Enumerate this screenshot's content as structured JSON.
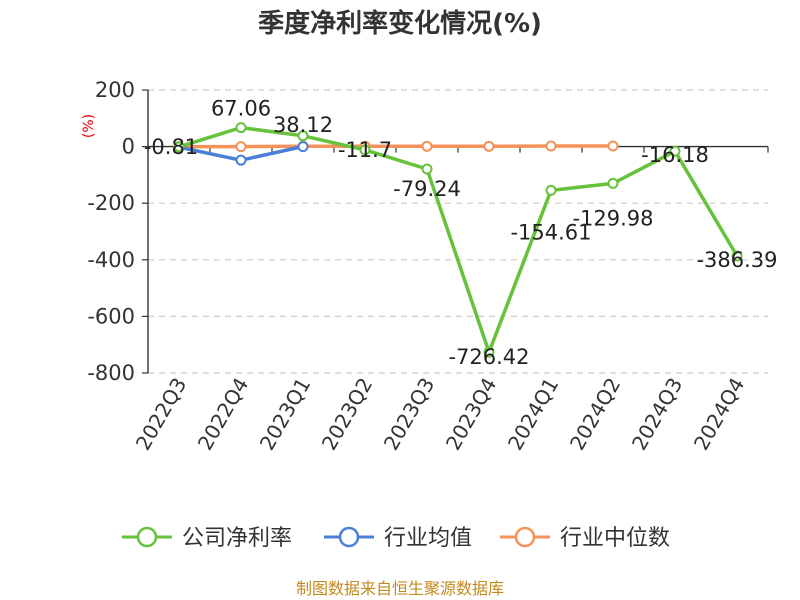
{
  "chart_data": {
    "type": "line",
    "title": "季度净利率变化情况(%)",
    "ylabel": "(%)",
    "categories": [
      "2022Q3",
      "2022Q4",
      "2023Q1",
      "2023Q2",
      "2023Q3",
      "2023Q4",
      "2024Q1",
      "2024Q2",
      "2024Q3",
      "2024Q4"
    ],
    "yticks": [
      200,
      0,
      -200,
      -400,
      -600,
      -800
    ],
    "ylim": [
      -800,
      200
    ],
    "grid": true,
    "legend_position": "bottom",
    "series": [
      {
        "name": "公司净利率",
        "color": "#66c23a",
        "values": [
          -0.81,
          67.06,
          38.12,
          -11.7,
          -79.24,
          -726.42,
          -154.61,
          -129.98,
          -16.18,
          -386.39
        ],
        "labels": [
          "-0.81",
          "67.06",
          "38.12",
          "-11.7",
          "-79.24",
          "-726.42",
          "-154.61",
          "-129.98",
          "-16.18",
          "-386.39"
        ]
      },
      {
        "name": "行业均值",
        "color": "#4a7fd8",
        "values": [
          -2,
          -48,
          0,
          null,
          null,
          null,
          null,
          null,
          null,
          null
        ]
      },
      {
        "name": "行业中位数",
        "color": "#f5925a",
        "values": [
          0,
          0,
          1,
          1,
          1,
          1,
          2,
          2,
          null,
          null
        ]
      }
    ]
  },
  "footer": {
    "source": "制图数据来自恒生聚源数据库"
  }
}
